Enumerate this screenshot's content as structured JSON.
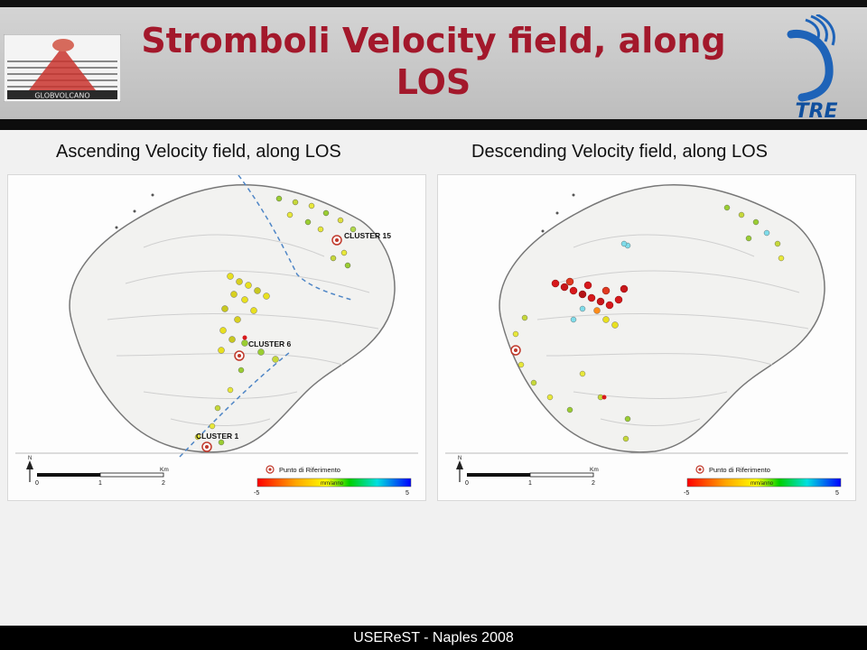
{
  "header": {
    "title": "Stromboli Velocity field, along LOS",
    "left_logo": {
      "icon": "globvolcano-logo",
      "text": "GLOBVOLCANO"
    },
    "right_logo": {
      "icon": "tre-logo",
      "text": "TRE"
    }
  },
  "panels": [
    {
      "title": "Ascending Velocity field, along LOS",
      "cluster_labels": [
        "CLUSTER 15",
        "CLUSTER 6",
        "CLUSTER 1"
      ]
    },
    {
      "title": "Descending Velocity field, along LOS",
      "cluster_labels": []
    }
  ],
  "legend": {
    "reference_label": "Punto di Riferimento",
    "colorbar_unit": "mm/anno",
    "colorbar_min": "-5",
    "colorbar_max": "5",
    "scale_ticks": [
      "0",
      "1",
      "2"
    ],
    "scale_unit": "Km",
    "north_label": "N"
  },
  "colors": {
    "title": "#a3182b",
    "header_bg": "#c8c8c8",
    "footer_bg": "#000000",
    "high_velocity": "#d7191c",
    "low_velocity": "#2b83ba"
  },
  "footer": {
    "text": "USEReST - Naples 2008"
  }
}
